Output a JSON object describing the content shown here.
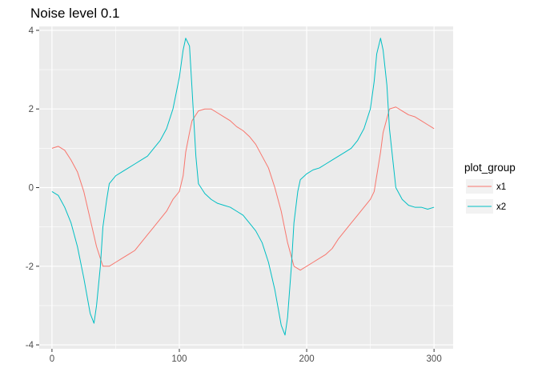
{
  "chart_data": {
    "type": "line",
    "title": "Noise level 0.1",
    "xlabel": "",
    "ylabel": "",
    "xlim": [
      -10,
      315
    ],
    "ylim": [
      -4.1,
      4.1
    ],
    "x_ticks": [
      0,
      100,
      200,
      300
    ],
    "y_ticks": [
      -4,
      -2,
      0,
      2,
      4
    ],
    "grid": true,
    "legend": {
      "title": "plot_group",
      "placement": "right"
    },
    "series": [
      {
        "name": "x1",
        "color": "#F8766D",
        "x": [
          0,
          5,
          10,
          15,
          20,
          25,
          30,
          35,
          40,
          45,
          50,
          55,
          60,
          65,
          70,
          75,
          80,
          85,
          90,
          95,
          100,
          103,
          105,
          108,
          110,
          115,
          120,
          125,
          130,
          135,
          140,
          145,
          150,
          155,
          160,
          165,
          170,
          175,
          180,
          185,
          190,
          195,
          200,
          205,
          210,
          215,
          220,
          225,
          230,
          235,
          240,
          245,
          250,
          253,
          255,
          258,
          260,
          265,
          270,
          275,
          280,
          285,
          290,
          295,
          300
        ],
        "y": [
          1.0,
          1.05,
          0.95,
          0.7,
          0.4,
          -0.1,
          -0.8,
          -1.5,
          -2.0,
          -2.0,
          -1.9,
          -1.8,
          -1.7,
          -1.6,
          -1.4,
          -1.2,
          -1.0,
          -0.8,
          -0.6,
          -0.3,
          -0.1,
          0.3,
          0.9,
          1.4,
          1.7,
          1.95,
          2.0,
          2.0,
          1.9,
          1.8,
          1.7,
          1.55,
          1.45,
          1.3,
          1.1,
          0.8,
          0.5,
          0.0,
          -0.6,
          -1.4,
          -2.0,
          -2.1,
          -2.0,
          -1.9,
          -1.8,
          -1.7,
          -1.55,
          -1.3,
          -1.1,
          -0.9,
          -0.7,
          -0.5,
          -0.3,
          -0.1,
          0.3,
          0.9,
          1.4,
          2.0,
          2.05,
          1.95,
          1.85,
          1.8,
          1.7,
          1.6,
          1.5
        ]
      },
      {
        "name": "x2",
        "color": "#00BFC4",
        "x": [
          0,
          5,
          10,
          15,
          20,
          25,
          30,
          33,
          35,
          38,
          40,
          43,
          45,
          50,
          55,
          60,
          65,
          70,
          75,
          80,
          85,
          90,
          95,
          100,
          103,
          105,
          108,
          110,
          113,
          115,
          120,
          125,
          130,
          135,
          140,
          145,
          150,
          155,
          160,
          165,
          170,
          175,
          180,
          183,
          185,
          188,
          190,
          193,
          195,
          200,
          205,
          210,
          215,
          220,
          225,
          230,
          235,
          240,
          245,
          250,
          253,
          255,
          258,
          260,
          263,
          265,
          268,
          270,
          275,
          280,
          285,
          290,
          295,
          300
        ],
        "y": [
          -0.1,
          -0.2,
          -0.5,
          -0.9,
          -1.5,
          -2.3,
          -3.2,
          -3.45,
          -3.0,
          -2.0,
          -1.0,
          -0.3,
          0.1,
          0.3,
          0.4,
          0.5,
          0.6,
          0.7,
          0.8,
          1.0,
          1.2,
          1.5,
          2.0,
          2.8,
          3.5,
          3.8,
          3.6,
          2.5,
          0.8,
          0.1,
          -0.15,
          -0.3,
          -0.4,
          -0.45,
          -0.5,
          -0.6,
          -0.7,
          -0.9,
          -1.1,
          -1.4,
          -1.9,
          -2.6,
          -3.5,
          -3.75,
          -3.3,
          -2.0,
          -0.9,
          -0.1,
          0.2,
          0.35,
          0.45,
          0.5,
          0.6,
          0.7,
          0.8,
          0.9,
          1.0,
          1.2,
          1.5,
          2.0,
          2.7,
          3.4,
          3.8,
          3.5,
          2.6,
          1.5,
          0.6,
          0.0,
          -0.3,
          -0.45,
          -0.5,
          -0.5,
          -0.55,
          -0.5
        ]
      }
    ]
  }
}
